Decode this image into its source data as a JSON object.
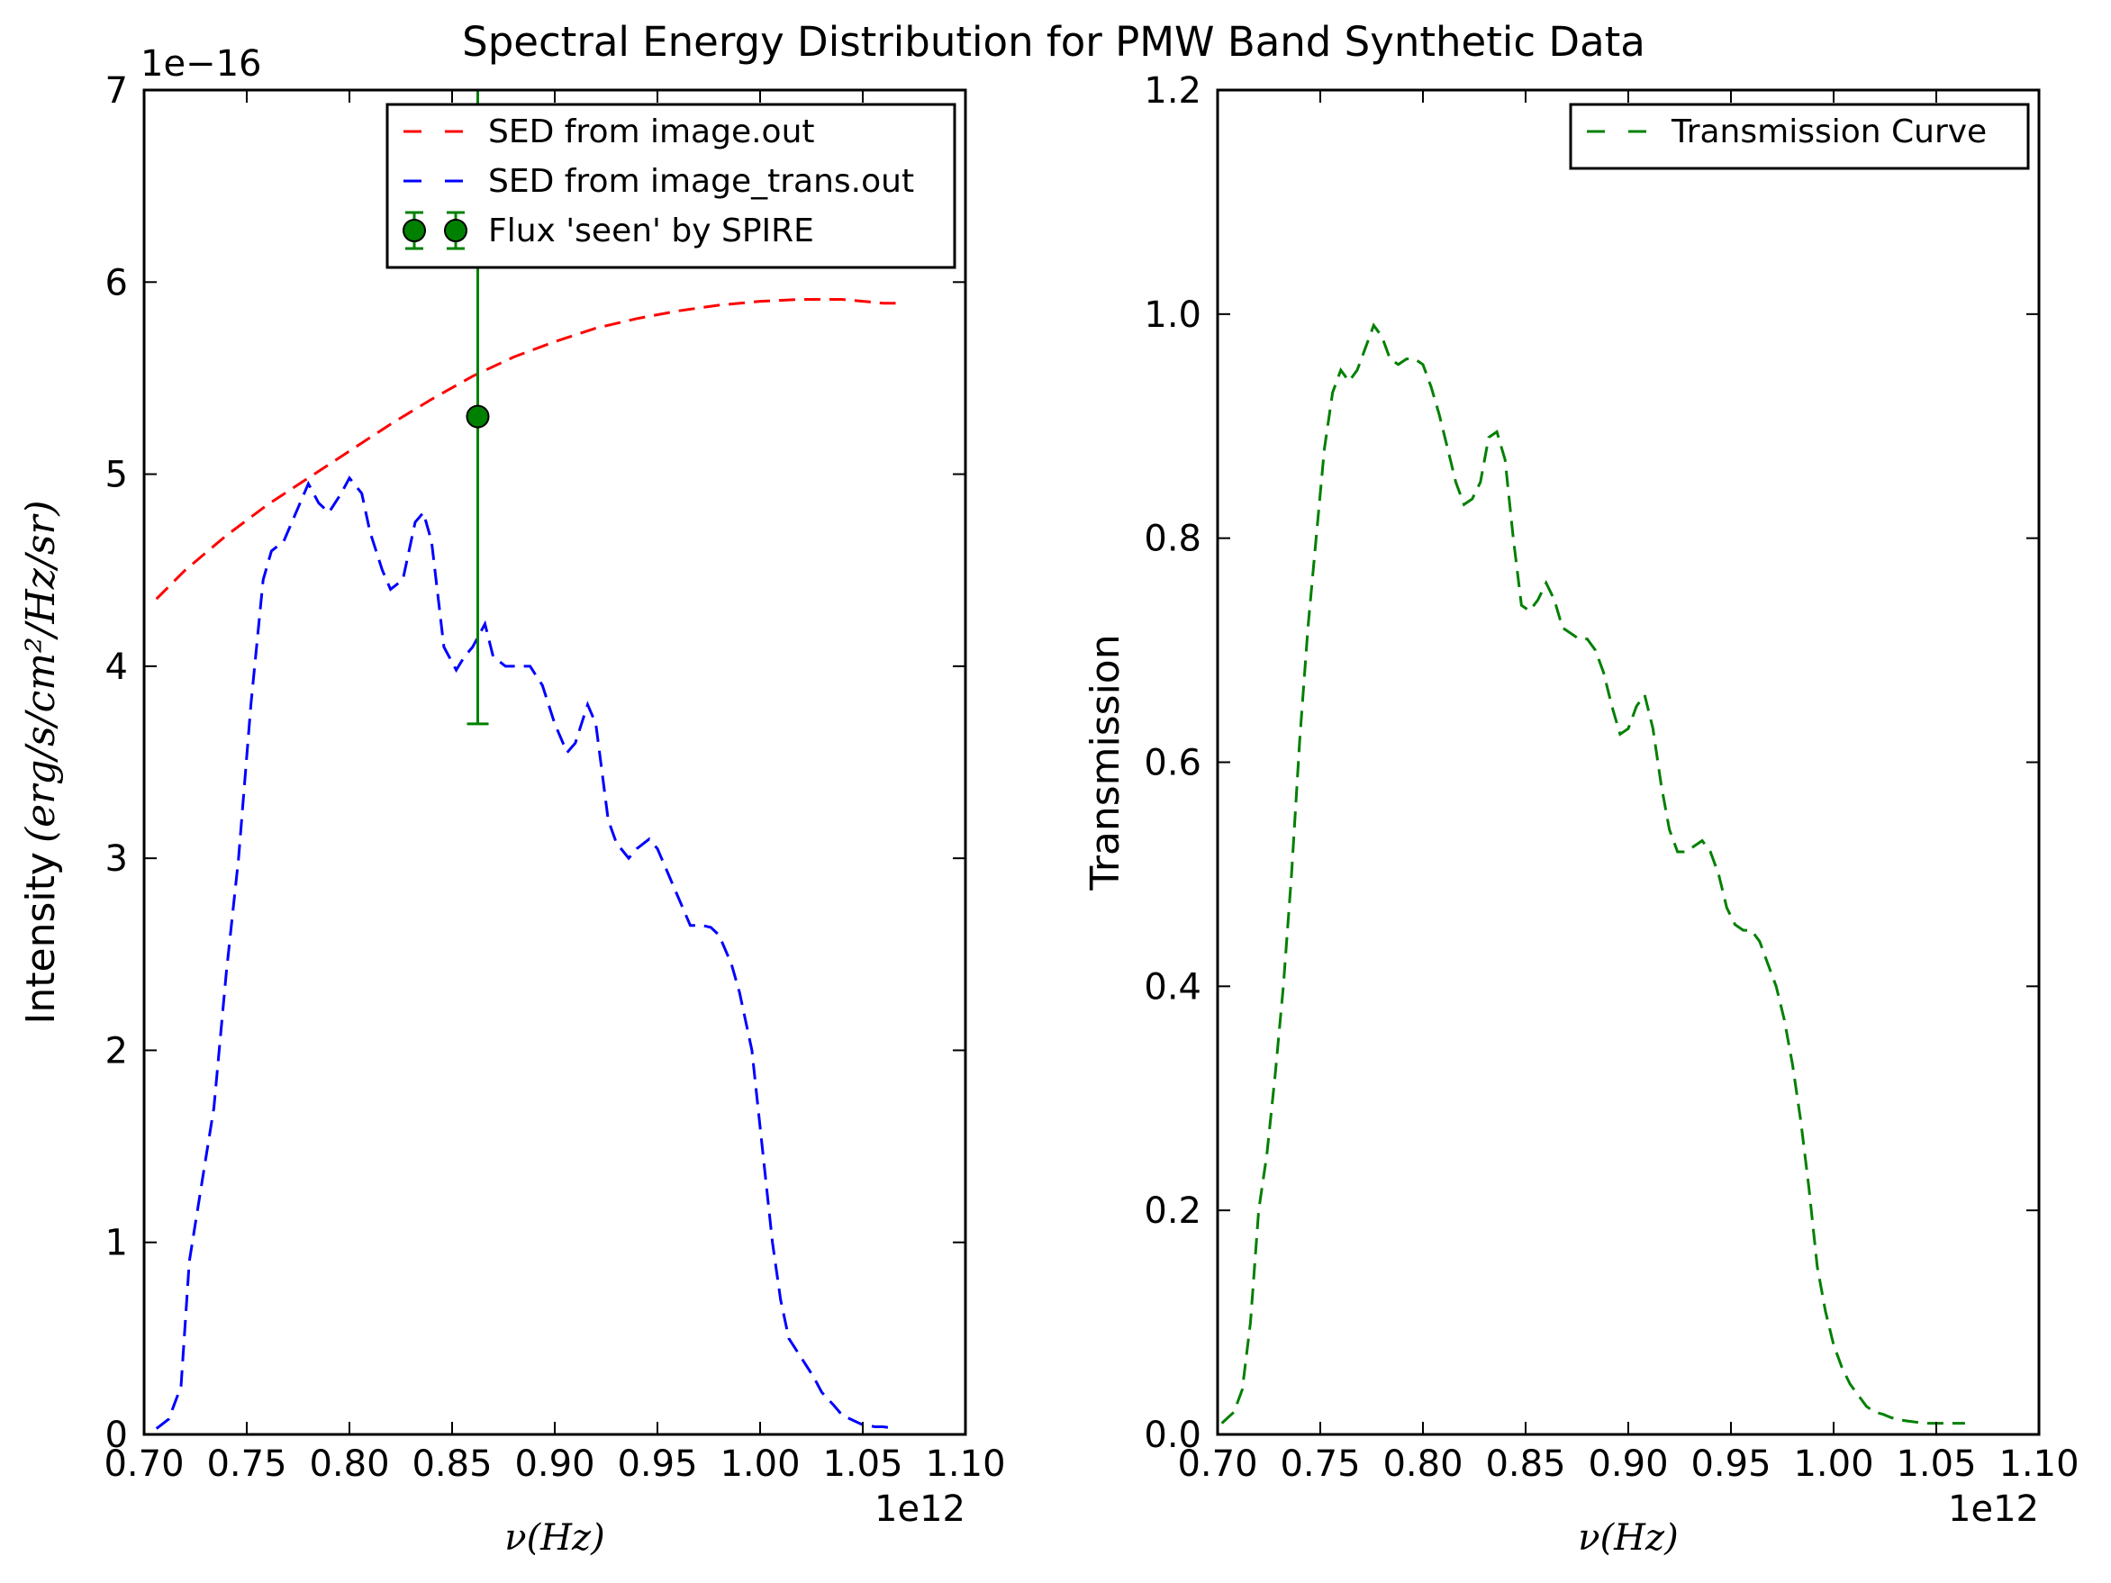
{
  "figure_title": "Spectral Energy Distribution for PMW Band Synthetic Data",
  "colors": {
    "red": "#ff0000",
    "blue": "#0000ff",
    "green": "#008000",
    "axes": "#000000"
  },
  "chart_data": [
    {
      "type": "line",
      "title": "",
      "xlabel": "ν(Hz)",
      "ylabel_plain": "Intensity",
      "ylabel_math": "(erg/s/cm²/Hz/sr)",
      "x_offset_label": "1e12",
      "y_offset_label": "1e−16",
      "xlim": [
        0.7,
        1.1
      ],
      "ylim": [
        0,
        7
      ],
      "x_ticks": [
        0.7,
        0.75,
        0.8,
        0.85,
        0.9,
        0.95,
        1.0,
        1.05,
        1.1
      ],
      "x_tick_labels": [
        "0.70",
        "0.75",
        "0.80",
        "0.85",
        "0.90",
        "0.95",
        "1.00",
        "1.05",
        "1.10"
      ],
      "y_ticks": [
        0,
        1,
        2,
        3,
        4,
        5,
        6,
        7
      ],
      "y_tick_labels": [
        "0",
        "1",
        "2",
        "3",
        "4",
        "5",
        "6",
        "7"
      ],
      "grid": false,
      "legend_position": "top-right",
      "series": [
        {
          "name": "SED from image.out",
          "style": "dashed",
          "color": "#ff0000",
          "x": [
            0.706,
            0.72,
            0.74,
            0.76,
            0.78,
            0.8,
            0.82,
            0.84,
            0.86,
            0.88,
            0.9,
            0.92,
            0.94,
            0.96,
            0.98,
            1.0,
            1.02,
            1.04,
            1.06,
            1.066
          ],
          "y": [
            4.35,
            4.5,
            4.68,
            4.84,
            4.98,
            5.12,
            5.26,
            5.39,
            5.51,
            5.61,
            5.69,
            5.76,
            5.81,
            5.85,
            5.88,
            5.9,
            5.91,
            5.91,
            5.89,
            5.89
          ]
        },
        {
          "name": "SED from image_trans.out",
          "style": "dashed",
          "color": "#0000ff",
          "x": [
            0.706,
            0.712,
            0.718,
            0.722,
            0.728,
            0.734,
            0.74,
            0.746,
            0.752,
            0.758,
            0.762,
            0.768,
            0.774,
            0.78,
            0.785,
            0.79,
            0.796,
            0.8,
            0.806,
            0.81,
            0.816,
            0.82,
            0.826,
            0.832,
            0.836,
            0.84,
            0.846,
            0.852,
            0.856,
            0.86,
            0.866,
            0.87,
            0.876,
            0.882,
            0.888,
            0.894,
            0.9,
            0.906,
            0.91,
            0.916,
            0.92,
            0.926,
            0.93,
            0.936,
            0.94,
            0.946,
            0.95,
            0.956,
            0.96,
            0.966,
            0.972,
            0.976,
            0.98,
            0.986,
            0.99,
            0.996,
            1.0,
            1.006,
            1.01,
            1.014,
            1.02,
            1.026,
            1.03,
            1.036,
            1.04,
            1.046,
            1.05,
            1.056,
            1.06,
            1.066
          ],
          "y": [
            0.03,
            0.08,
            0.25,
            0.9,
            1.3,
            1.7,
            2.4,
            3.0,
            3.8,
            4.45,
            4.6,
            4.65,
            4.8,
            4.95,
            4.85,
            4.8,
            4.9,
            4.98,
            4.9,
            4.7,
            4.5,
            4.4,
            4.45,
            4.75,
            4.8,
            4.65,
            4.1,
            3.98,
            4.05,
            4.1,
            4.22,
            4.05,
            4.0,
            4.0,
            4.0,
            3.9,
            3.7,
            3.55,
            3.6,
            3.8,
            3.7,
            3.2,
            3.08,
            3.0,
            3.05,
            3.1,
            3.05,
            2.9,
            2.8,
            2.65,
            2.65,
            2.64,
            2.6,
            2.45,
            2.3,
            2.0,
            1.6,
            1.0,
            0.7,
            0.5,
            0.4,
            0.3,
            0.22,
            0.15,
            0.1,
            0.07,
            0.05,
            0.04,
            0.04,
            0.03
          ]
        }
      ],
      "errorbar": {
        "name": "Flux 'seen' by SPIRE",
        "color": "#008000",
        "x": 0.8625,
        "y": 5.3,
        "yerr_low": 3.7,
        "yerr_high": 7.0
      }
    },
    {
      "type": "line",
      "title": "",
      "xlabel": "ν(Hz)",
      "ylabel_plain": "Transmission",
      "x_offset_label": "1e12",
      "xlim": [
        0.7,
        1.1
      ],
      "ylim": [
        0.0,
        1.2
      ],
      "x_ticks": [
        0.7,
        0.75,
        0.8,
        0.85,
        0.9,
        0.95,
        1.0,
        1.05,
        1.1
      ],
      "x_tick_labels": [
        "0.70",
        "0.75",
        "0.80",
        "0.85",
        "0.90",
        "0.95",
        "1.00",
        "1.05",
        "1.10"
      ],
      "y_ticks": [
        0.0,
        0.2,
        0.4,
        0.6,
        0.8,
        1.0,
        1.2
      ],
      "y_tick_labels": [
        "0.0",
        "0.2",
        "0.4",
        "0.6",
        "0.8",
        "1.0",
        "1.2"
      ],
      "grid": false,
      "legend_position": "top-right",
      "series": [
        {
          "name": "Transmission Curve",
          "style": "dashed",
          "color": "#008000",
          "x": [
            0.702,
            0.708,
            0.712,
            0.716,
            0.72,
            0.724,
            0.728,
            0.732,
            0.736,
            0.74,
            0.744,
            0.748,
            0.752,
            0.756,
            0.76,
            0.764,
            0.768,
            0.772,
            0.776,
            0.78,
            0.784,
            0.788,
            0.792,
            0.796,
            0.8,
            0.804,
            0.808,
            0.812,
            0.816,
            0.82,
            0.824,
            0.828,
            0.832,
            0.836,
            0.84,
            0.844,
            0.848,
            0.852,
            0.856,
            0.86,
            0.864,
            0.868,
            0.872,
            0.876,
            0.88,
            0.884,
            0.888,
            0.892,
            0.896,
            0.9,
            0.904,
            0.908,
            0.912,
            0.916,
            0.92,
            0.924,
            0.928,
            0.932,
            0.936,
            0.94,
            0.944,
            0.948,
            0.952,
            0.956,
            0.96,
            0.964,
            0.968,
            0.972,
            0.976,
            0.98,
            0.984,
            0.988,
            0.992,
            0.996,
            1.0,
            1.004,
            1.008,
            1.012,
            1.016,
            1.02,
            1.024,
            1.028,
            1.032,
            1.036,
            1.04,
            1.044,
            1.048,
            1.052,
            1.056,
            1.06,
            1.064
          ],
          "y": [
            0.01,
            0.02,
            0.04,
            0.1,
            0.2,
            0.25,
            0.32,
            0.4,
            0.5,
            0.62,
            0.72,
            0.8,
            0.88,
            0.93,
            0.95,
            0.94,
            0.95,
            0.97,
            0.99,
            0.98,
            0.96,
            0.955,
            0.96,
            0.96,
            0.955,
            0.935,
            0.91,
            0.88,
            0.85,
            0.83,
            0.835,
            0.85,
            0.89,
            0.895,
            0.87,
            0.8,
            0.74,
            0.735,
            0.745,
            0.76,
            0.745,
            0.72,
            0.715,
            0.71,
            0.71,
            0.7,
            0.68,
            0.65,
            0.625,
            0.63,
            0.65,
            0.66,
            0.63,
            0.58,
            0.54,
            0.52,
            0.52,
            0.525,
            0.53,
            0.52,
            0.5,
            0.47,
            0.455,
            0.45,
            0.45,
            0.44,
            0.42,
            0.4,
            0.37,
            0.33,
            0.28,
            0.22,
            0.15,
            0.11,
            0.08,
            0.06,
            0.045,
            0.035,
            0.025,
            0.02,
            0.018,
            0.015,
            0.013,
            0.012,
            0.011,
            0.01,
            0.01,
            0.01,
            0.01,
            0.01,
            0.01
          ]
        }
      ]
    }
  ]
}
